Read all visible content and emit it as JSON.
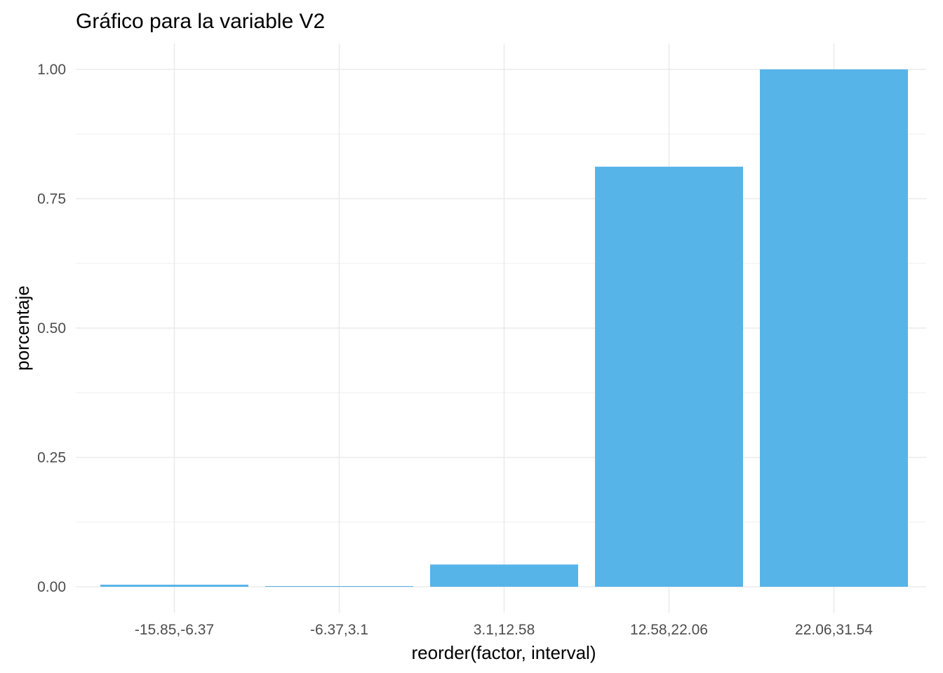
{
  "chart_data": {
    "type": "bar",
    "title": "Gráfico para la variable  V2",
    "xlabel": "reorder(factor, interval)",
    "ylabel": "porcentaje",
    "categories": [
      "-15.85,-6.37",
      "-6.37,3.1",
      "3.1,12.58",
      "12.58,22.06",
      "22.06,31.54"
    ],
    "values": [
      0.004,
      0.001,
      0.043,
      0.812,
      1.0
    ],
    "ylim": [
      0,
      1.05
    ],
    "yticks": [
      0.0,
      0.25,
      0.5,
      0.75,
      1.0
    ],
    "ytick_labels": [
      "0.00",
      "0.25",
      "0.50",
      "0.75",
      "1.00"
    ],
    "grid": true,
    "legend": "none",
    "bar_color": "#56B4E9"
  }
}
